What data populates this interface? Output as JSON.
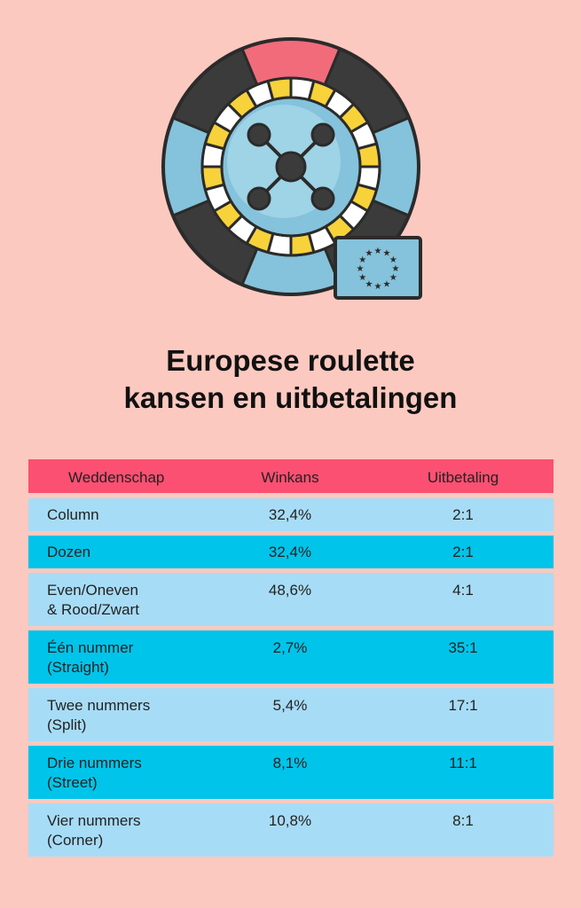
{
  "colors": {
    "background": "#fcc9c0",
    "header_row": "#fb5072",
    "row_light": "#a7dcf6",
    "row_dark": "#00c4ea"
  },
  "illustration": {
    "icon": "roulette-wheel-icon",
    "flag_icon": "eu-flag-icon"
  },
  "title": {
    "line1": "Europese roulette",
    "line2": "kansen en uitbetalingen"
  },
  "table": {
    "headers": [
      "Weddenschap",
      "Winkans",
      "Uitbetaling"
    ],
    "rows": [
      {
        "bet": [
          "Column"
        ],
        "chance": "32,4%",
        "payout": "2:1",
        "style": "light"
      },
      {
        "bet": [
          "Dozen"
        ],
        "chance": "32,4%",
        "payout": "2:1",
        "style": "dark"
      },
      {
        "bet": [
          "Even/Oneven",
          "& Rood/Zwart"
        ],
        "chance": "48,6%",
        "payout": "4:1",
        "style": "light"
      },
      {
        "bet": [
          "Één nummer",
          "(Straight)"
        ],
        "chance": "2,7%",
        "payout": "35:1",
        "style": "dark"
      },
      {
        "bet": [
          "Twee nummers",
          "(Split)"
        ],
        "chance": "5,4%",
        "payout": "17:1",
        "style": "light"
      },
      {
        "bet": [
          "Drie nummers",
          "(Street)"
        ],
        "chance": "8,1%",
        "payout": "11:1",
        "style": "dark"
      },
      {
        "bet": [
          "Vier nummers",
          "(Corner)"
        ],
        "chance": "10,8%",
        "payout": "8:1",
        "style": "light"
      }
    ]
  }
}
